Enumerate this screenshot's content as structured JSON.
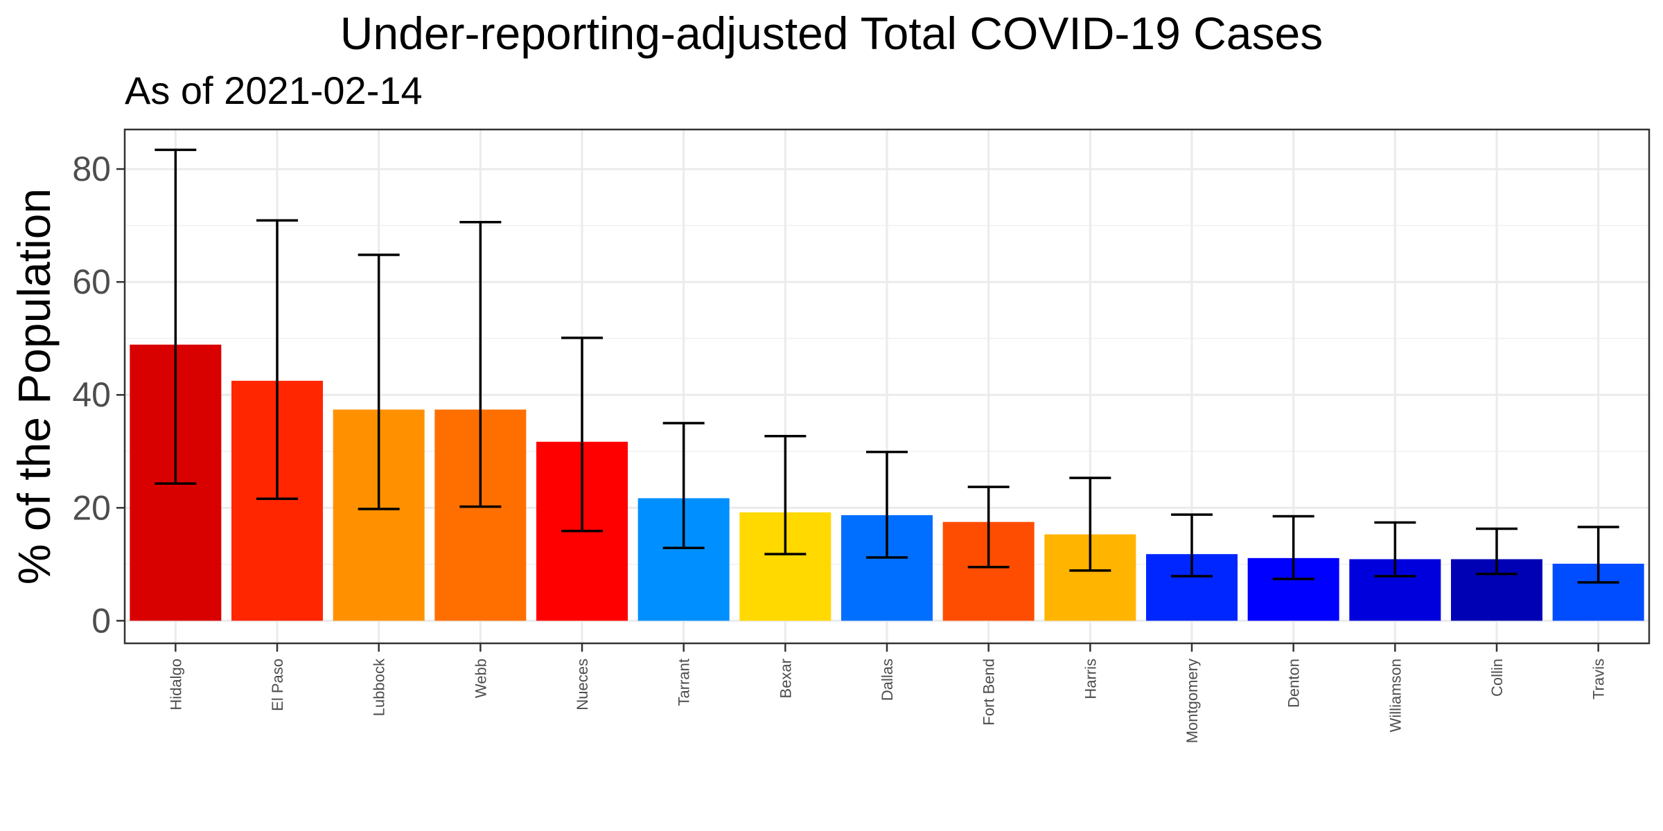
{
  "chart_data": {
    "type": "bar",
    "title": "Under-reporting-adjusted Total COVID-19 Cases",
    "subtitle": "As of 2021-02-14",
    "xlabel": "",
    "ylabel": "% of the Population",
    "ylim": [
      -4,
      87
    ],
    "yticks": [
      0,
      20,
      40,
      60,
      80
    ],
    "grid": true,
    "legend": "none",
    "categories": [
      "Hidalgo",
      "El Paso",
      "Lubbock",
      "Webb",
      "Nueces",
      "Tarrant",
      "Bexar",
      "Dallas",
      "Fort Bend",
      "Harris",
      "Montgomery",
      "Denton",
      "Williamson",
      "Collin",
      "Travis"
    ],
    "values": [
      48.9,
      42.5,
      37.4,
      37.4,
      31.7,
      21.7,
      19.2,
      18.7,
      17.5,
      15.3,
      11.8,
      11.1,
      10.9,
      10.9,
      10.1
    ],
    "error_low": [
      24.3,
      21.6,
      19.8,
      20.2,
      15.9,
      12.9,
      11.8,
      11.2,
      9.5,
      8.9,
      7.9,
      7.4,
      7.9,
      8.3,
      6.8
    ],
    "error_high": [
      83.4,
      70.9,
      64.8,
      70.6,
      50.1,
      35.0,
      32.7,
      29.9,
      23.7,
      25.3,
      18.8,
      18.5,
      17.4,
      16.3,
      16.6
    ],
    "colors": [
      "#D90000",
      "#FF2600",
      "#FF9100",
      "#FF6F00",
      "#FF0000",
      "#008FFF",
      "#FFD900",
      "#006FFF",
      "#FF4D00",
      "#FFB400",
      "#0026FF",
      "#0000FF",
      "#0000DC",
      "#0000B4",
      "#004DFF"
    ]
  }
}
